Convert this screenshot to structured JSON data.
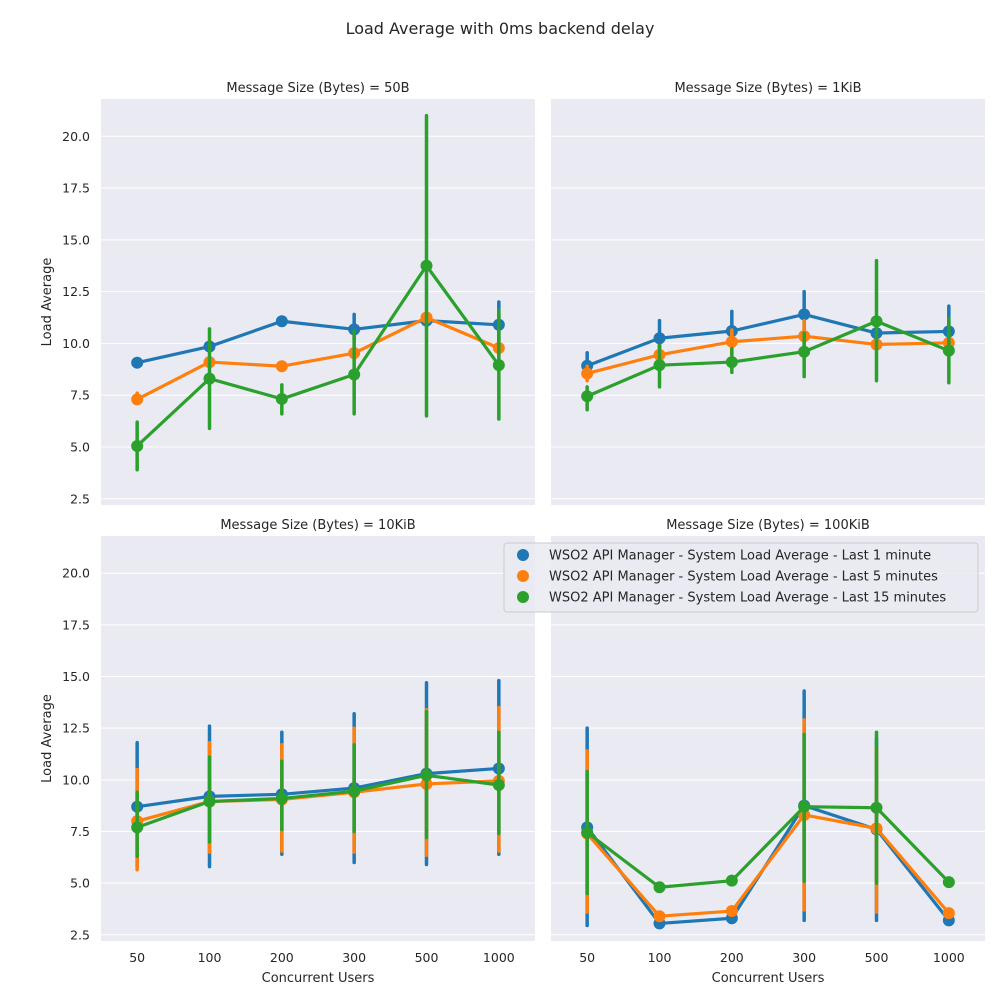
{
  "figure_title": "Load Average with 0ms backend delay",
  "colors": {
    "s1": "#1f77b4",
    "s5": "#ff7f0e",
    "s15": "#2ca02c",
    "panel_bg": "#eaeaf2",
    "grid": "#ffffff"
  },
  "legend": {
    "placement": "upper-right of bottom-right panel",
    "entries": [
      "WSO2 API Manager - System Load Average - Last 1 minute",
      "WSO2 API Manager - System Load Average - Last 5 minutes",
      "WSO2 API Manager - System Load Average - Last 15 minutes"
    ]
  },
  "chart_data": [
    {
      "type": "line",
      "title": "Message Size (Bytes) = 50B",
      "xlabel": "",
      "ylabel": "Load Average",
      "categories": [
        "50",
        "100",
        "200",
        "300",
        "500",
        "1000"
      ],
      "ylim": [
        2.2,
        21.8
      ],
      "yticks": [
        "2.5",
        "5.0",
        "7.5",
        "10.0",
        "12.5",
        "15.0",
        "17.5",
        "20.0"
      ],
      "series": [
        {
          "name": "WSO2 API Manager - System Load Average - Last 1 minute",
          "values": [
            9.07,
            9.85,
            11.07,
            10.68,
            11.1,
            10.9
          ],
          "err_low": [
            9.07,
            9.85,
            11.07,
            10.2,
            11.1,
            10.1
          ],
          "err_high": [
            9.07,
            9.85,
            11.07,
            11.4,
            11.1,
            12.0
          ]
        },
        {
          "name": "WSO2 API Manager - System Load Average - Last 5 minutes",
          "values": [
            7.3,
            9.1,
            8.9,
            9.53,
            11.25,
            9.78
          ],
          "err_low": [
            7.1,
            9.1,
            8.9,
            9.4,
            11.25,
            9.6
          ],
          "err_high": [
            7.6,
            9.1,
            8.9,
            9.7,
            11.25,
            9.95
          ]
        },
        {
          "name": "WSO2 API Manager - System Load Average - Last 15 minutes",
          "values": [
            5.05,
            8.3,
            7.32,
            8.5,
            13.75,
            8.95
          ],
          "err_low": [
            3.9,
            5.9,
            6.6,
            6.6,
            6.5,
            6.35
          ],
          "err_high": [
            6.2,
            10.7,
            8.0,
            10.6,
            21.0,
            11.6
          ]
        }
      ]
    },
    {
      "type": "line",
      "title": "Message Size (Bytes) = 1KiB",
      "xlabel": "",
      "ylabel": "",
      "categories": [
        "50",
        "100",
        "200",
        "300",
        "500",
        "1000"
      ],
      "ylim": [
        2.2,
        21.8
      ],
      "yticks": [],
      "series": [
        {
          "name": "WSO2 API Manager - System Load Average - Last 1 minute",
          "values": [
            8.92,
            10.25,
            10.6,
            11.4,
            10.5,
            10.58
          ],
          "err_low": [
            8.4,
            9.5,
            9.8,
            10.4,
            10.5,
            9.4
          ],
          "err_high": [
            9.55,
            11.1,
            11.55,
            12.5,
            10.5,
            11.8
          ]
        },
        {
          "name": "WSO2 API Manager - System Load Average - Last 5 minutes",
          "values": [
            8.55,
            9.45,
            10.08,
            10.35,
            9.95,
            10.03
          ],
          "err_low": [
            8.2,
            9.1,
            9.5,
            9.7,
            9.95,
            9.5
          ],
          "err_high": [
            8.9,
            9.9,
            10.65,
            11.1,
            9.95,
            10.5
          ]
        },
        {
          "name": "WSO2 API Manager - System Load Average - Last 15 minutes",
          "values": [
            7.45,
            8.95,
            9.1,
            9.6,
            11.07,
            9.65
          ],
          "err_low": [
            6.8,
            7.9,
            8.6,
            8.4,
            8.2,
            8.1
          ],
          "err_high": [
            7.9,
            9.9,
            9.75,
            10.5,
            14.0,
            11.2
          ]
        }
      ]
    },
    {
      "type": "line",
      "title": "Message Size (Bytes) = 10KiB",
      "xlabel": "Concurrent Users",
      "ylabel": "Load Average",
      "categories": [
        "50",
        "100",
        "200",
        "300",
        "500",
        "1000"
      ],
      "ylim": [
        2.2,
        21.8
      ],
      "yticks": [
        "2.5",
        "5.0",
        "7.5",
        "10.0",
        "12.5",
        "15.0",
        "17.5",
        "20.0"
      ],
      "series": [
        {
          "name": "WSO2 API Manager - System Load Average - Last 1 minute",
          "values": [
            8.7,
            9.2,
            9.3,
            9.6,
            10.3,
            10.55
          ],
          "err_low": [
            5.8,
            5.8,
            6.4,
            6.0,
            5.9,
            6.4
          ],
          "err_high": [
            11.8,
            12.6,
            12.3,
            13.2,
            14.7,
            14.8
          ]
        },
        {
          "name": "WSO2 API Manager - System Load Average - Last 5 minutes",
          "values": [
            8.0,
            8.95,
            9.05,
            9.4,
            9.8,
            9.95
          ],
          "err_low": [
            5.65,
            6.5,
            6.55,
            6.5,
            6.35,
            6.55
          ],
          "err_high": [
            10.5,
            11.8,
            11.7,
            12.5,
            13.4,
            13.5
          ]
        },
        {
          "name": "WSO2 API Manager - System Load Average - Last 15 minutes",
          "values": [
            7.7,
            8.95,
            9.1,
            9.45,
            10.22,
            9.75
          ],
          "err_low": [
            6.3,
            7.0,
            7.6,
            7.5,
            7.2,
            7.4
          ],
          "err_high": [
            9.4,
            11.1,
            10.9,
            11.7,
            13.3,
            12.3
          ]
        }
      ]
    },
    {
      "type": "line",
      "title": "Message Size (Bytes) = 100KiB",
      "xlabel": "Concurrent Users",
      "ylabel": "",
      "categories": [
        "50",
        "100",
        "200",
        "300",
        "500",
        "1000"
      ],
      "ylim": [
        2.2,
        21.8
      ],
      "yticks": [],
      "series": [
        {
          "name": "WSO2 API Manager - System Load Average - Last 1 minute",
          "values": [
            7.7,
            3.05,
            3.3,
            8.75,
            7.6,
            3.2
          ],
          "err_low": [
            2.95,
            3.05,
            3.3,
            3.2,
            3.2,
            3.2
          ],
          "err_high": [
            12.5,
            3.05,
            3.3,
            14.3,
            12.0,
            3.2
          ]
        },
        {
          "name": "WSO2 API Manager - System Load Average - Last 5 minutes",
          "values": [
            7.4,
            3.4,
            3.65,
            8.3,
            7.65,
            3.55
          ],
          "err_low": [
            3.6,
            3.4,
            3.65,
            3.7,
            3.6,
            3.55
          ],
          "err_high": [
            11.4,
            3.4,
            3.65,
            12.9,
            11.5,
            3.55
          ]
        },
        {
          "name": "WSO2 API Manager - System Load Average - Last 15 minutes",
          "values": [
            7.45,
            4.8,
            5.12,
            8.7,
            8.65,
            5.05
          ],
          "err_low": [
            4.5,
            4.8,
            5.12,
            5.1,
            5.0,
            5.05
          ],
          "err_high": [
            10.4,
            4.8,
            5.12,
            12.2,
            12.3,
            5.05
          ]
        }
      ]
    }
  ]
}
